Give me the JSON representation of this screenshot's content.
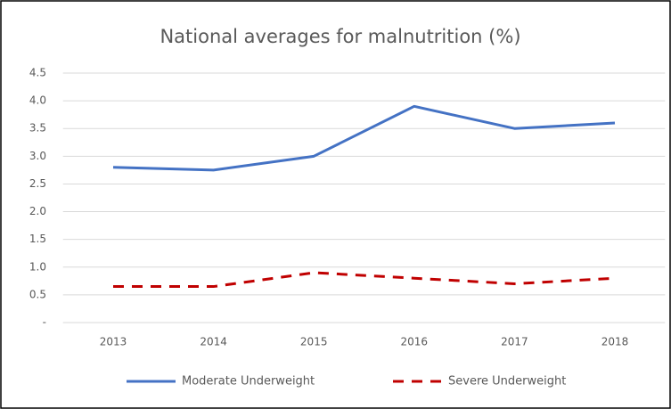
{
  "chart_data": {
    "type": "line",
    "title": "National averages for malnutrition (%)",
    "categories": [
      "2013",
      "2014",
      "2015",
      "2016",
      "2017",
      "2018"
    ],
    "series": [
      {
        "name": "Moderate Underweight",
        "color": "#4472c4",
        "line_style": "solid",
        "values": [
          2.8,
          2.75,
          3.0,
          3.9,
          3.5,
          3.6
        ]
      },
      {
        "name": "Severe Underweight",
        "color": "#c00000",
        "line_style": "dashed",
        "values": [
          0.65,
          0.65,
          0.9,
          0.8,
          0.7,
          0.8
        ]
      }
    ],
    "ylim": [
      0,
      4.5
    ],
    "yticks": [
      {
        "value": 0,
        "label": "-"
      },
      0.5,
      {
        "value": 1,
        "label": "1.0"
      },
      1.5,
      {
        "value": 2,
        "label": "2.0"
      },
      2.5,
      {
        "value": 3,
        "label": "3.0"
      },
      3.5,
      {
        "value": 4,
        "label": "4.0"
      },
      4.5
    ],
    "grid": true,
    "legend": "bottom"
  }
}
